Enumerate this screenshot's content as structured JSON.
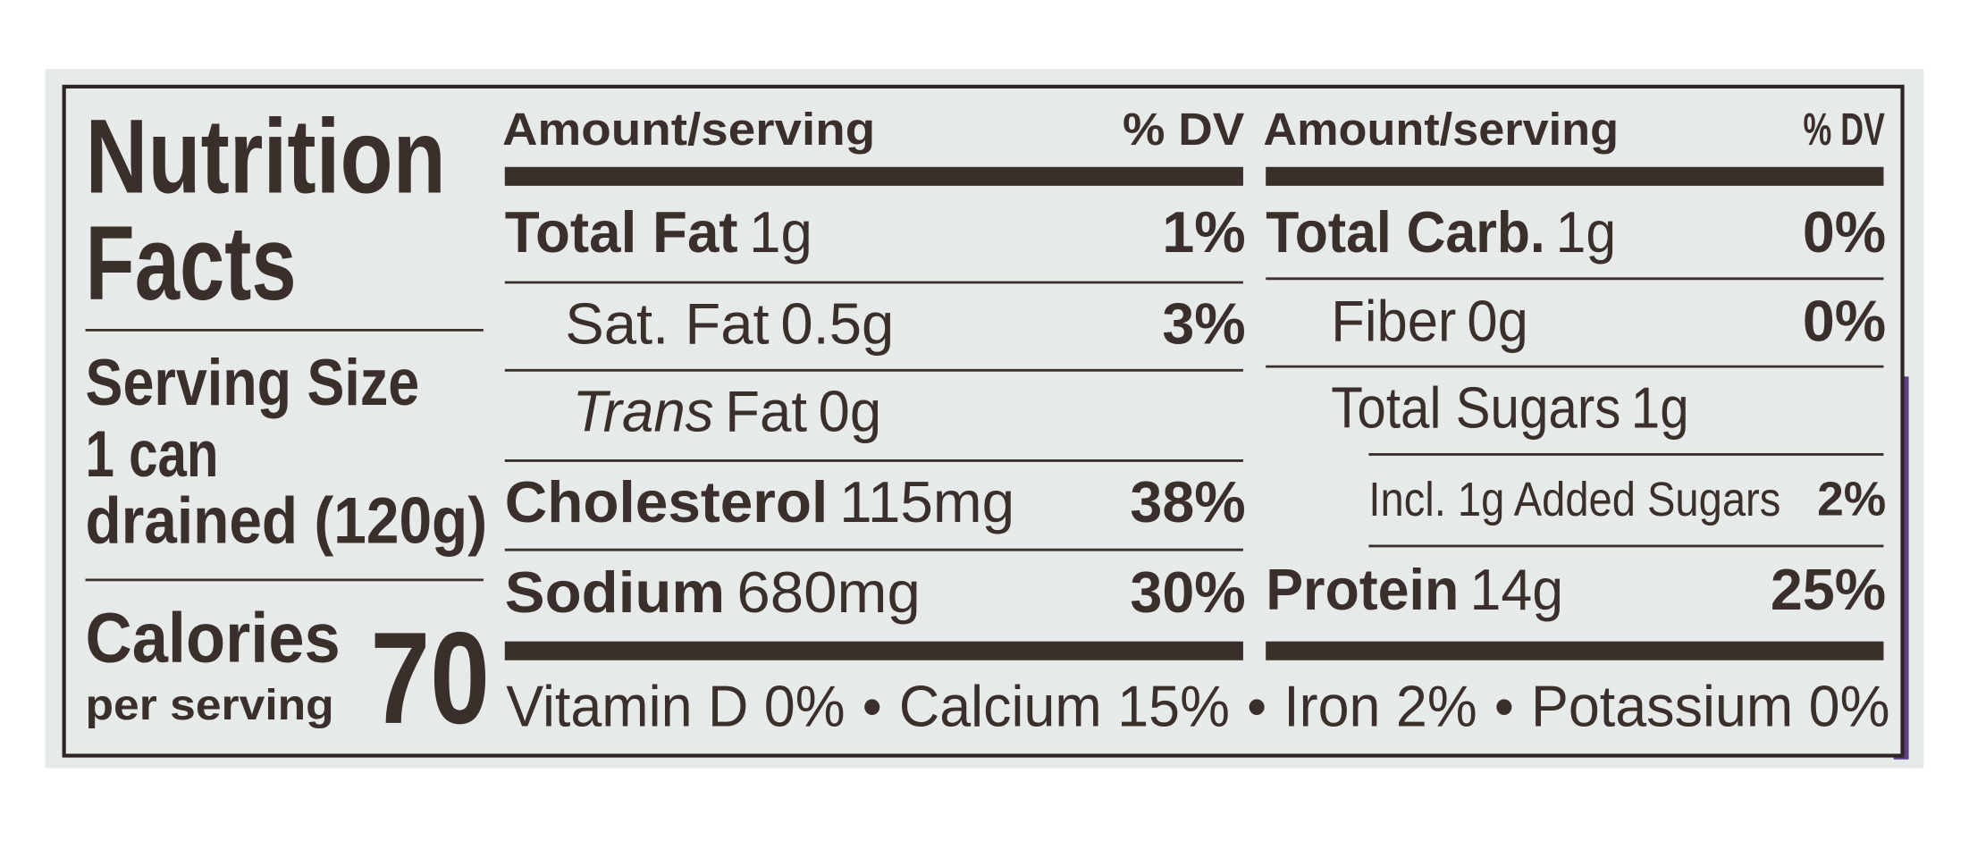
{
  "title": [
    "Nutrition",
    "Facts"
  ],
  "serving_size": {
    "label": "Serving Size",
    "lines": [
      "1 can",
      "drained (120g)"
    ]
  },
  "calories": {
    "label": "Calories",
    "sublabel": "per serving",
    "value": 70
  },
  "columns": [
    {
      "header": {
        "amount": "Amount/serving",
        "dv": "% DV"
      },
      "rows": [
        {
          "name": "Total Fat",
          "amount": "1g",
          "dv": "1%"
        },
        {
          "name": "Sat. Fat",
          "amount": "0.5g",
          "dv": "3%"
        },
        {
          "name_italic": "Trans",
          "name": "Fat",
          "amount": "0g"
        },
        {
          "name": "Cholesterol",
          "amount": "115mg",
          "dv": "38%"
        },
        {
          "name": "Sodium",
          "amount": "680mg",
          "dv": "30%"
        }
      ]
    },
    {
      "header": {
        "amount": "Amount/serving",
        "dv": "% DV"
      },
      "rows": [
        {
          "name": "Total Carb.",
          "amount": "1g",
          "dv": "0%"
        },
        {
          "name": "Fiber",
          "amount": "0g",
          "dv": "0%"
        },
        {
          "name": "Total Sugars",
          "amount": "1g"
        },
        {
          "name": "Incl. 1g Added Sugars",
          "dv": "2%"
        },
        {
          "name": "Protein",
          "amount": "14g",
          "dv": "25%"
        }
      ]
    }
  ],
  "vitamins": [
    "Vitamin D 0%",
    "Calcium 15%",
    "Iron 2%",
    "Potassium 0%"
  ],
  "vitamins_separator": "•"
}
